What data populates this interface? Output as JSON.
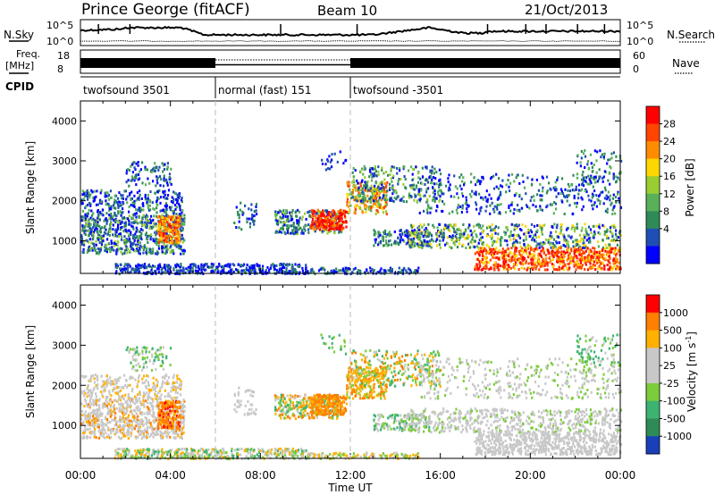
{
  "header": {
    "station": "Prince George (fitACF)",
    "beam": "Beam 10",
    "date": "21/Oct/2013"
  },
  "aux_panels": {
    "nsky_label": "N.Sky",
    "nsky_ticks": [
      "10^5",
      "10^0"
    ],
    "nsearch_label": "N.Search",
    "nsearch_ticks": [
      "10^5",
      "10^0"
    ],
    "freq_label_1": "Freq.",
    "freq_label_2": "[MHz]",
    "freq_ticks": [
      "18",
      "8"
    ],
    "nave_label": "Nave",
    "nave_ticks": [
      "60",
      "0"
    ],
    "cpid_label": "CPID",
    "cpid_segments": [
      {
        "label": "twofsound 3501",
        "start_hour": 0,
        "end_hour": 6
      },
      {
        "label": "normal (fast) 151",
        "start_hour": 6,
        "end_hour": 12
      },
      {
        "label": "twofsound -3501",
        "start_hour": 12,
        "end_hour": 24
      }
    ]
  },
  "chart_data": [
    {
      "type": "heatmap",
      "title": "",
      "xlabel": "",
      "ylabel": "Slant Range [km]",
      "xlim": [
        0,
        24
      ],
      "ylim": [
        180,
        4500
      ],
      "yticks": [
        "4000",
        "3000",
        "2000",
        "1000"
      ],
      "colorbar_label": "Power [dB]",
      "colorbar_ticks": [
        "28",
        "24",
        "20",
        "16",
        "12",
        "8",
        "4"
      ],
      "colorbar_colors": [
        "#0000ff",
        "#1f4fb4",
        "#2e8b57",
        "#58b058",
        "#9acd32",
        "#ffd700",
        "#ff8c00",
        "#ff4500",
        "#ff0000"
      ]
    },
    {
      "type": "heatmap",
      "title": "",
      "xlabel": "Time UT",
      "ylabel": "Slant Range [km]",
      "xlim": [
        0,
        24
      ],
      "ylim": [
        180,
        4500
      ],
      "xticks": [
        "00:00",
        "04:00",
        "08:00",
        "12:00",
        "16:00",
        "20:00",
        "00:00"
      ],
      "yticks": [
        "4000",
        "3000",
        "2000",
        "1000"
      ],
      "colorbar_label": "Velocity [m s",
      "colorbar_label_sup": "-1",
      "colorbar_label_close": "]",
      "colorbar_ticks": [
        "1000",
        "500",
        "100",
        "25",
        "-25",
        "-100",
        "-500",
        "-1000"
      ],
      "colorbar_colors": [
        "#1a3fb8",
        "#2e8b57",
        "#3cb371",
        "#7ccd3c",
        "#c8c8c8",
        "#c8c8c8",
        "#ffb000",
        "#ff7f00",
        "#ff0000"
      ]
    }
  ]
}
